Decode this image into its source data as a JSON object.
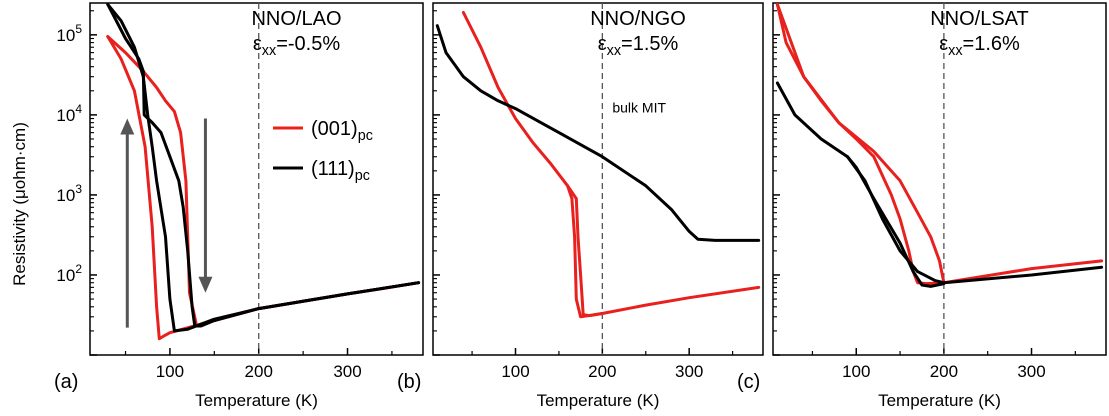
{
  "figure": {
    "y_axis_label": "Resistivity (μohm·cm)",
    "y_tick_labels": [
      {
        "base": "10",
        "exp": "2",
        "value": 100
      },
      {
        "base": "10",
        "exp": "3",
        "value": 1000
      },
      {
        "base": "10",
        "exp": "4",
        "value": 10000
      },
      {
        "base": "10",
        "exp": "5",
        "value": 100000
      }
    ],
    "legend": [
      {
        "main": "(001)",
        "sub": "pc",
        "color": "#e8201e"
      },
      {
        "main": "(111)",
        "sub": "pc",
        "color": "#000000"
      }
    ],
    "bulk_label": "bulk MIT",
    "colors": {
      "red": "#e8201e",
      "black": "#000000",
      "arrow": "#555555",
      "dashed_line": "#555555"
    }
  },
  "chart_data": [
    {
      "type": "line",
      "panel_label": "(a)",
      "title": "NNO/LAO",
      "strain": {
        "prefix": "ε",
        "sub": "xx",
        "value": "=-0.5%"
      },
      "xlabel": "Temperature (K)",
      "ylabel": "Resistivity (μohm·cm)",
      "xlim": [
        10,
        385
      ],
      "ylim": [
        10,
        250000
      ],
      "yscale": "log",
      "xticks": [
        100,
        200,
        300
      ],
      "vline": 200,
      "series": [
        {
          "name": "(001)pc",
          "color": "#e8201e",
          "x": [
            30,
            45,
            60,
            72,
            80,
            85,
            88,
            92,
            100,
            150,
            200,
            250,
            300,
            330,
            380
          ],
          "y": [
            95000,
            50000,
            20000,
            4000,
            400,
            40,
            16,
            17,
            19,
            27,
            38,
            47,
            58,
            65,
            80
          ]
        },
        {
          "name": "(001)pc",
          "color": "#e8201e",
          "x": [
            30,
            50,
            70,
            85,
            95,
            105,
            112,
            118,
            122,
            130,
            150,
            200,
            300,
            380
          ],
          "y": [
            95000,
            60000,
            35000,
            22000,
            15000,
            11000,
            6000,
            1500,
            60,
            23,
            27,
            38,
            58,
            80
          ]
        },
        {
          "name": "(111)pc",
          "color": "#000000",
          "x": [
            30,
            45,
            60,
            70,
            75,
            80,
            85,
            95,
            100,
            105,
            120,
            150,
            200,
            300,
            380
          ],
          "y": [
            240000,
            150000,
            70000,
            30000,
            10000,
            4000,
            1500,
            300,
            50,
            20,
            21,
            28,
            38,
            58,
            80
          ]
        },
        {
          "name": "(111)pc",
          "color": "#000000",
          "x": [
            30,
            50,
            65,
            70,
            71,
            80,
            90,
            100,
            110,
            115,
            120,
            125,
            128,
            135,
            150,
            200,
            300,
            380
          ],
          "y": [
            240000,
            90000,
            50000,
            35000,
            10000,
            8000,
            6000,
            3000,
            1500,
            700,
            200,
            40,
            23,
            23,
            27,
            38,
            58,
            80
          ]
        }
      ],
      "annotations": [
        {
          "type": "arrow",
          "direction": "up",
          "x": 52,
          "y_from": 22,
          "y_to": 9000
        },
        {
          "type": "arrow",
          "direction": "down",
          "x": 140,
          "y_from": 9000,
          "y_to": 60
        }
      ]
    },
    {
      "type": "line",
      "panel_label": "(b)",
      "title": "NNO/NGO",
      "strain": {
        "prefix": "ε",
        "sub": "xx",
        "value": "=1.5%"
      },
      "xlabel": "Temperature (K)",
      "xlim": [
        5,
        385
      ],
      "ylim": [
        10,
        250000
      ],
      "yscale": "log",
      "xticks": [
        100,
        200,
        300
      ],
      "vline": 200,
      "annotation_text": "bulk MIT",
      "series": [
        {
          "name": "(001)pc",
          "color": "#e8201e",
          "x": [
            40,
            60,
            80,
            100,
            120,
            140,
            160,
            165,
            168,
            170,
            175,
            200,
            250,
            300,
            380
          ],
          "y": [
            190000,
            70000,
            22000,
            9000,
            4500,
            2500,
            1300,
            900,
            300,
            50,
            30,
            33,
            42,
            52,
            70
          ]
        },
        {
          "name": "(001)pc",
          "color": "#e8201e",
          "x": [
            160,
            170,
            172,
            175,
            178,
            185,
            200
          ],
          "y": [
            1300,
            900,
            300,
            100,
            32,
            31,
            33
          ]
        },
        {
          "name": "(111)pc",
          "color": "#000000",
          "x": [
            10,
            20,
            40,
            60,
            80,
            100,
            150,
            200,
            250,
            280,
            300,
            310,
            330,
            380
          ],
          "y": [
            130000,
            60000,
            30000,
            20000,
            15000,
            12000,
            6000,
            3000,
            1300,
            650,
            350,
            280,
            270,
            270
          ]
        }
      ]
    },
    {
      "type": "line",
      "panel_label": "(c)",
      "title": "NNO/LSAT",
      "strain": {
        "prefix": "ε",
        "sub": "xx",
        "value": "=1.6%"
      },
      "xlabel": "Temperature (K)",
      "xlim": [
        5,
        385
      ],
      "ylim": [
        10,
        250000
      ],
      "yscale": "log",
      "xticks": [
        100,
        200,
        300
      ],
      "vline": 200,
      "series": [
        {
          "name": "(001)pc",
          "color": "#e8201e",
          "x": [
            10,
            20,
            40,
            60,
            80,
            100,
            120,
            140,
            150,
            160,
            165,
            170,
            180,
            200,
            300,
            380
          ],
          "y": [
            240000,
            80000,
            30000,
            15000,
            8000,
            5000,
            3000,
            1000,
            500,
            200,
            110,
            80,
            78,
            80,
            120,
            150
          ]
        },
        {
          "name": "(001)pc",
          "color": "#e8201e",
          "x": [
            10,
            40,
            80,
            120,
            150,
            170,
            185,
            195,
            200
          ],
          "y": [
            240000,
            30000,
            8000,
            3500,
            1500,
            600,
            300,
            150,
            80
          ]
        },
        {
          "name": "(111)pc",
          "color": "#000000",
          "x": [
            10,
            30,
            60,
            90,
            110,
            130,
            150,
            170,
            190,
            200,
            300,
            380
          ],
          "y": [
            25000,
            10000,
            5000,
            3000,
            1500,
            500,
            200,
            110,
            85,
            80,
            100,
            125
          ]
        },
        {
          "name": "(111)pc",
          "color": "#000000",
          "x": [
            90,
            100,
            120,
            150,
            165,
            175,
            185,
            200
          ],
          "y": [
            3000,
            2200,
            900,
            250,
            110,
            75,
            72,
            78
          ]
        }
      ]
    }
  ]
}
